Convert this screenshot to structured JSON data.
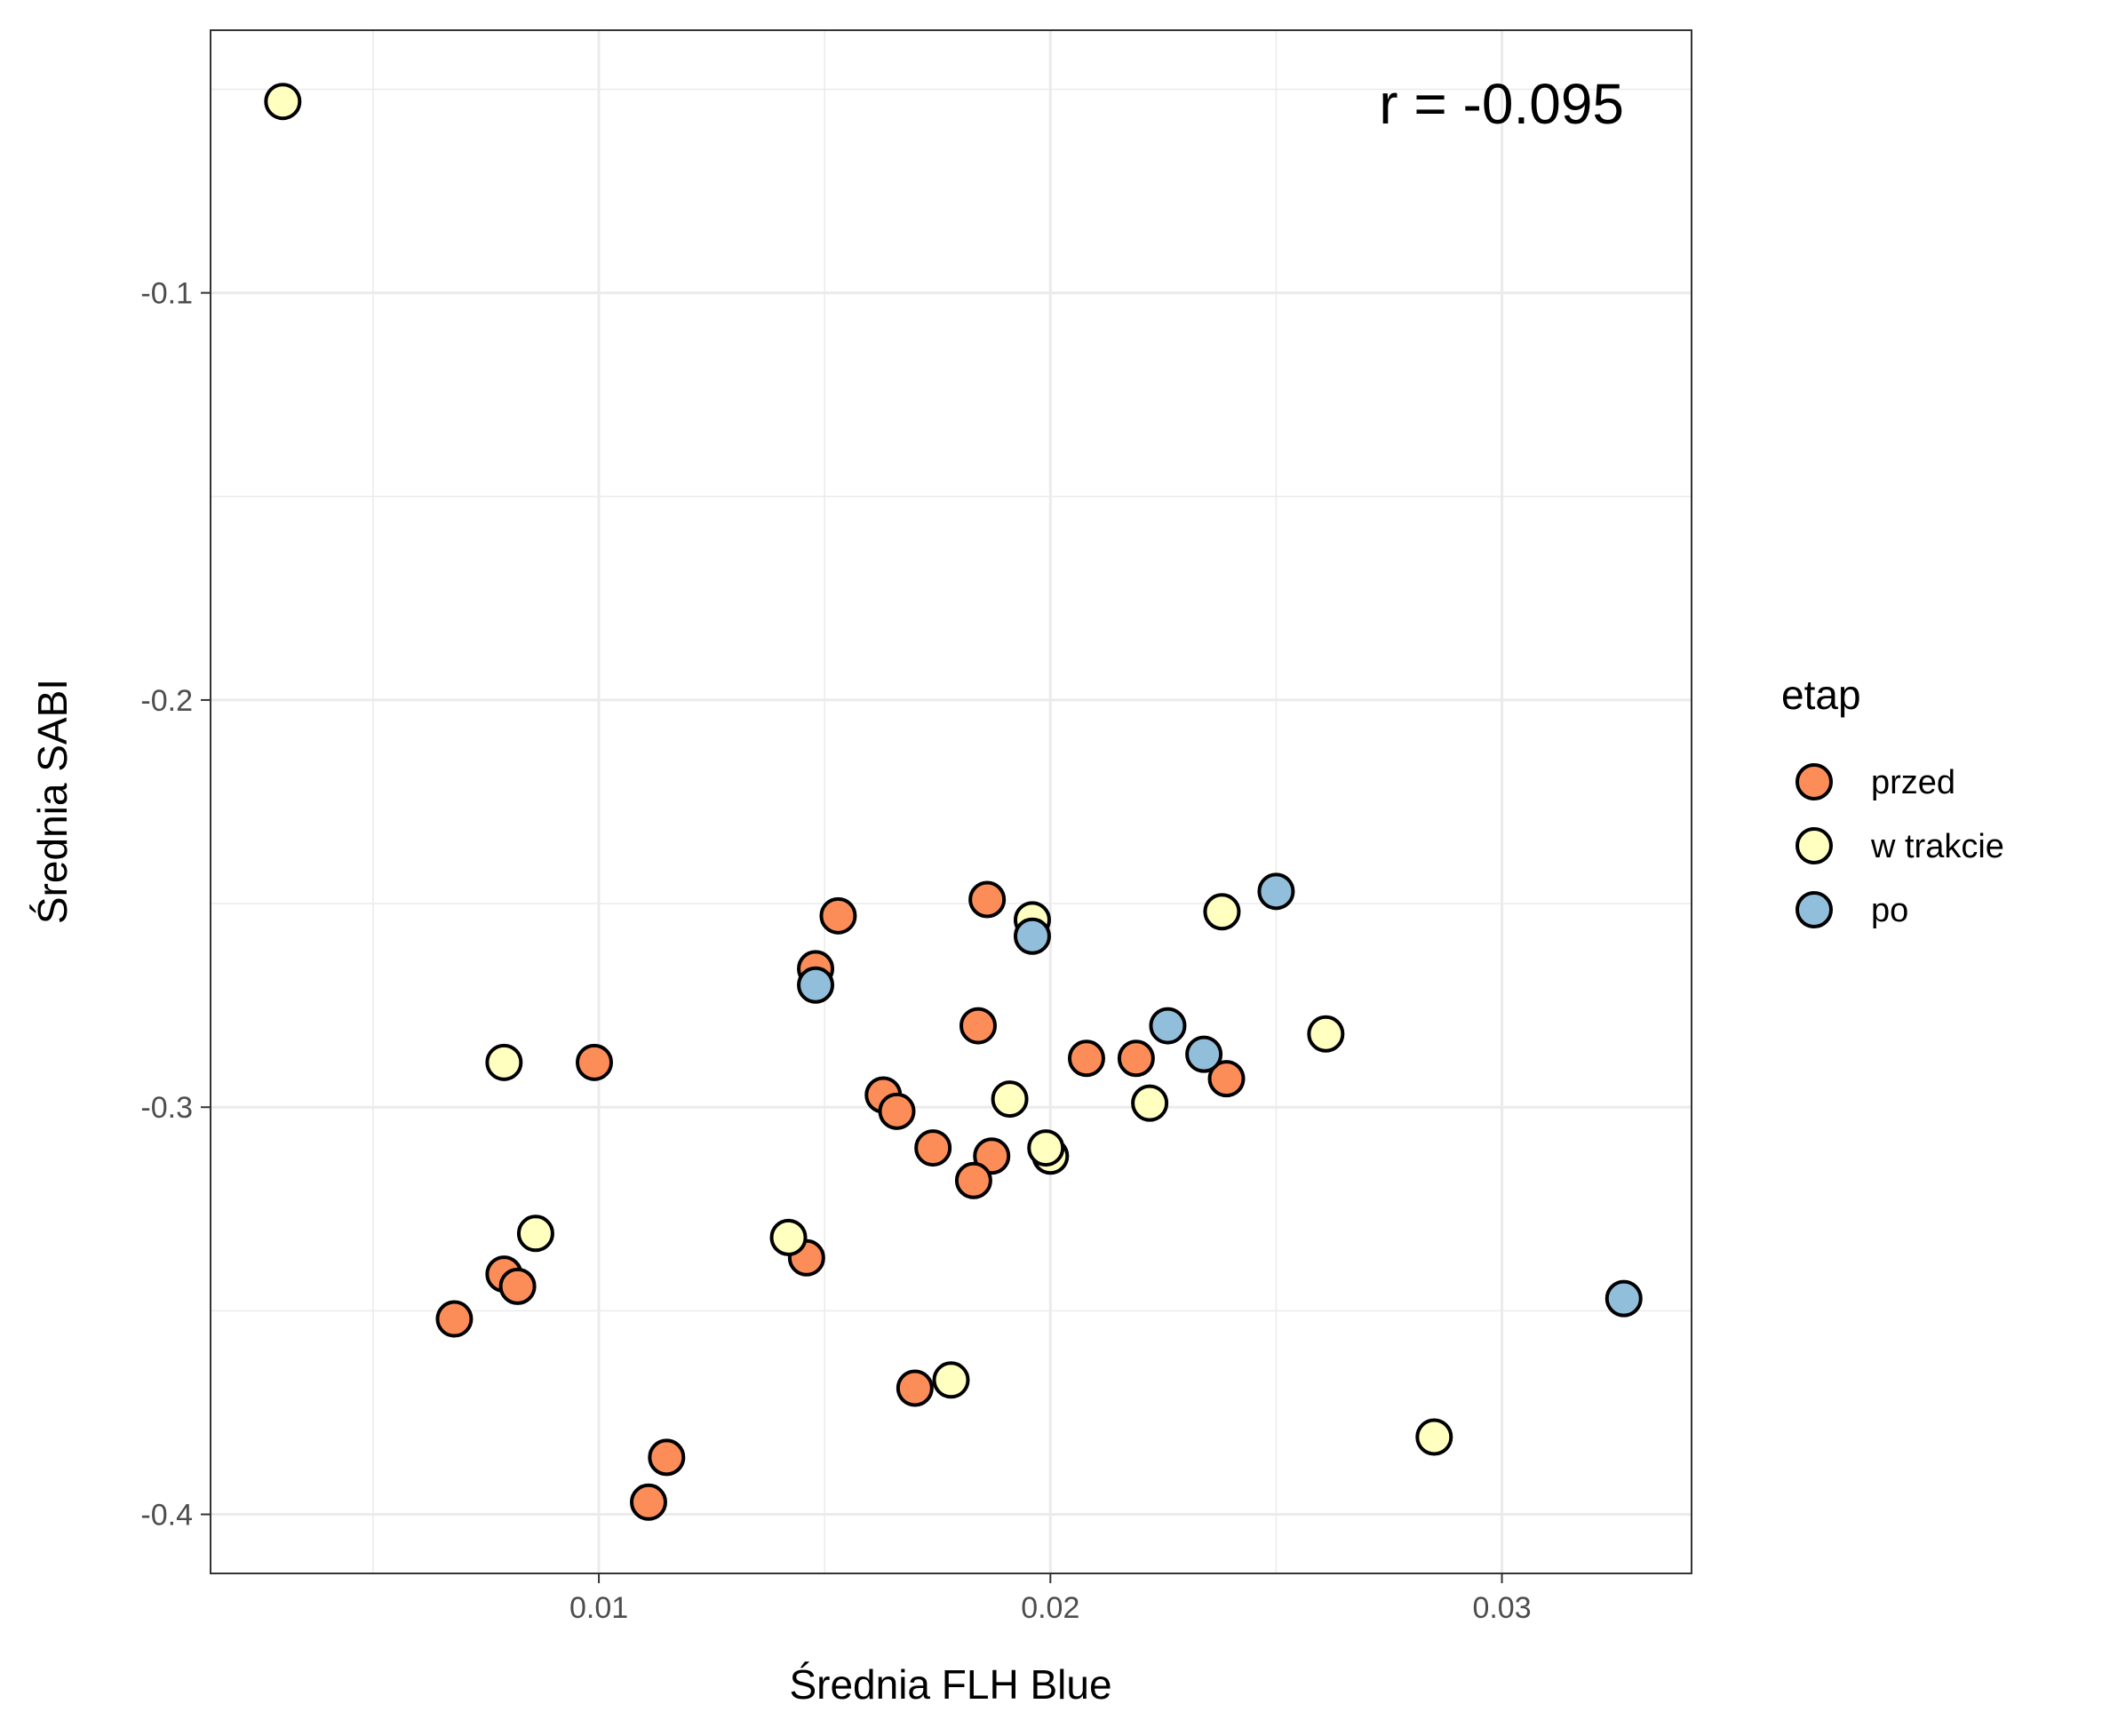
{
  "chart_data": {
    "type": "scatter",
    "title": "",
    "xlabel": "Średnia FLH Blue",
    "ylabel": "Średnia SABI",
    "xlim": [
      0.0014,
      0.0342
    ],
    "ylim": [
      -0.4145,
      -0.0355
    ],
    "x_ticks": [
      {
        "value": 0.01,
        "label": "0.01"
      },
      {
        "value": 0.02,
        "label": "0.02"
      },
      {
        "value": 0.03,
        "label": "0.03"
      }
    ],
    "y_ticks": [
      {
        "value": -0.1,
        "label": "-0.1"
      },
      {
        "value": -0.2,
        "label": "-0.2"
      },
      {
        "value": -0.3,
        "label": "-0.3"
      },
      {
        "value": -0.4,
        "label": "-0.4"
      }
    ],
    "grid": true,
    "legend": {
      "title": "etap",
      "position": "right"
    },
    "annotation": {
      "text": "r = -0.095",
      "position": "top-right"
    },
    "series": [
      {
        "name": "przed",
        "color": "#fc8d59",
        "points": [
          [
            0.0153,
            -0.253
          ],
          [
            0.0186,
            -0.249
          ],
          [
            0.0148,
            -0.266
          ],
          [
            0.0184,
            -0.28
          ],
          [
            0.0099,
            -0.289
          ],
          [
            0.0208,
            -0.288
          ],
          [
            0.0219,
            -0.288
          ],
          [
            0.0239,
            -0.293
          ],
          [
            0.0163,
            -0.297
          ],
          [
            0.0166,
            -0.301
          ],
          [
            0.0174,
            -0.31
          ],
          [
            0.0187,
            -0.312
          ],
          [
            0.0183,
            -0.318
          ],
          [
            0.0146,
            -0.337
          ],
          [
            0.0079,
            -0.341
          ],
          [
            0.0082,
            -0.344
          ],
          [
            0.0068,
            -0.352
          ],
          [
            0.017,
            -0.369
          ],
          [
            0.0115,
            -0.386
          ],
          [
            0.0111,
            -0.397
          ]
        ]
      },
      {
        "name": "w trakcie",
        "color": "#ffffbf",
        "points": [
          [
            0.003,
            -0.053
          ],
          [
            0.0196,
            -0.254
          ],
          [
            0.0238,
            -0.252
          ],
          [
            0.0261,
            -0.282
          ],
          [
            0.0079,
            -0.289
          ],
          [
            0.0191,
            -0.298
          ],
          [
            0.0222,
            -0.299
          ],
          [
            0.02,
            -0.312
          ],
          [
            0.0199,
            -0.31
          ],
          [
            0.0086,
            -0.331
          ],
          [
            0.0142,
            -0.332
          ],
          [
            0.0178,
            -0.367
          ],
          [
            0.0285,
            -0.381
          ]
        ]
      },
      {
        "name": "po",
        "color": "#91bfdb",
        "points": [
          [
            0.025,
            -0.247
          ],
          [
            0.0196,
            -0.258
          ],
          [
            0.0148,
            -0.27
          ],
          [
            0.0226,
            -0.28
          ],
          [
            0.0234,
            -0.287
          ],
          [
            0.0327,
            -0.347
          ]
        ]
      }
    ]
  }
}
